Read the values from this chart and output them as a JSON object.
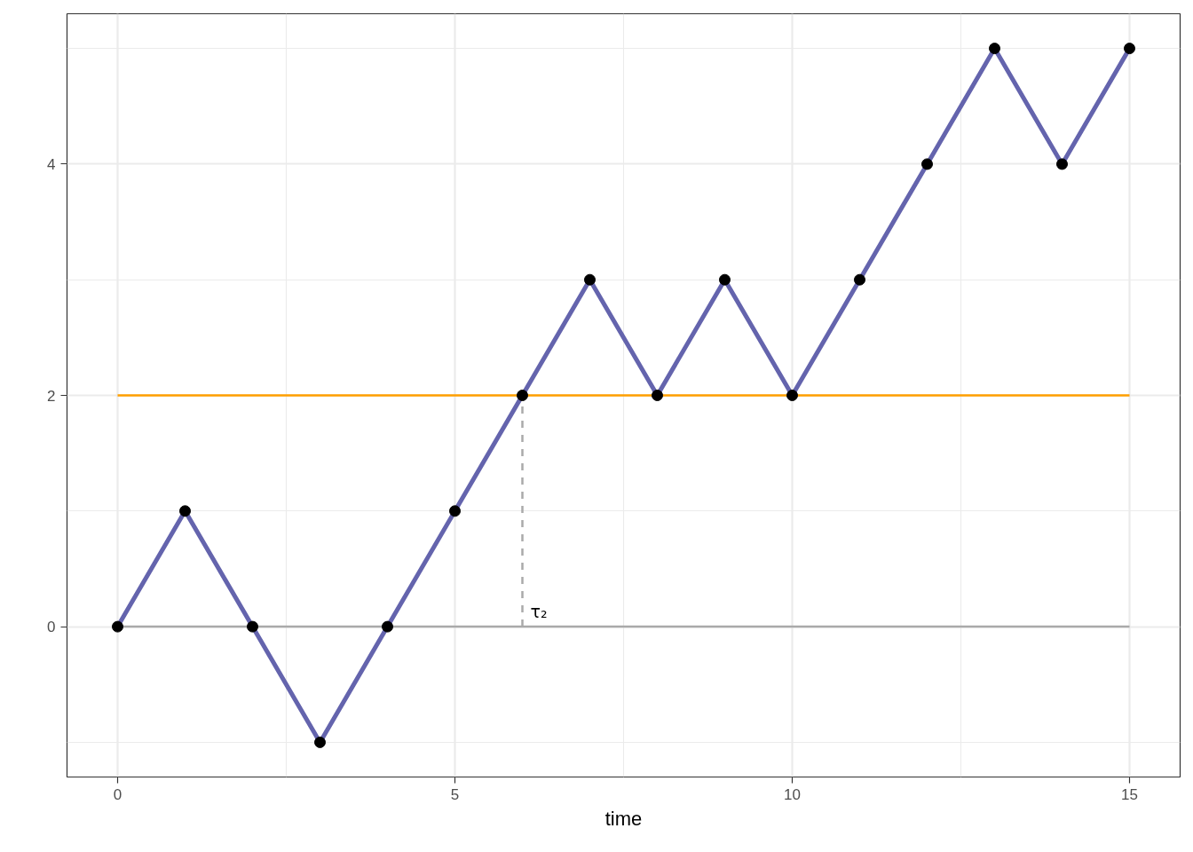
{
  "chart_data": {
    "type": "line",
    "xlabel": "time",
    "xlim": [
      -0.75,
      15.75
    ],
    "ylim": [
      -1.3,
      5.3
    ],
    "xticks": [
      0,
      {
        "value": 2.5,
        "label": null
      },
      5,
      {
        "value": 7.5,
        "label": null
      },
      10,
      {
        "value": 12.5,
        "label": null
      },
      15
    ],
    "yticks": [
      {
        "value": -1,
        "label": null
      },
      0,
      {
        "value": 1,
        "label": null
      },
      2,
      {
        "value": 3,
        "label": null
      },
      4,
      {
        "value": 5,
        "label": null
      }
    ],
    "grid": true,
    "series": [
      {
        "x": [
          0,
          15
        ],
        "values": [
          0,
          0
        ],
        "color": "#aaaaaa",
        "line_style": "solid",
        "marker": "none"
      },
      {
        "x": [
          0,
          15
        ],
        "values": [
          2,
          2
        ],
        "color": "#ff9f00",
        "line_style": "solid",
        "marker": "none"
      },
      {
        "x": [
          6,
          6
        ],
        "values": [
          0,
          2
        ],
        "color": "#aaaaaa",
        "line_style": "dashed",
        "marker": "none"
      },
      {
        "x": [
          0,
          1,
          2,
          3,
          4,
          5,
          6,
          7,
          8,
          9,
          10,
          11,
          12,
          13,
          14,
          15
        ],
        "values": [
          0,
          1,
          0,
          -1,
          0,
          1,
          2,
          3,
          2,
          3,
          2,
          3,
          4,
          5,
          4,
          5
        ],
        "color": "#6464ad",
        "line_style": "solid",
        "marker": "none"
      },
      {
        "type": "scatter",
        "x": [
          0,
          1,
          2,
          3,
          4,
          5,
          6,
          7,
          8,
          9,
          10,
          11,
          12,
          13,
          14,
          15
        ],
        "values": [
          0,
          1,
          0,
          -1,
          0,
          1,
          2,
          3,
          2,
          3,
          2,
          3,
          4,
          5,
          4,
          5
        ],
        "color": "#000000",
        "marker": "circle"
      }
    ],
    "annotations": [
      {
        "text": "τ₂",
        "x": 6,
        "y": 0
      }
    ]
  }
}
